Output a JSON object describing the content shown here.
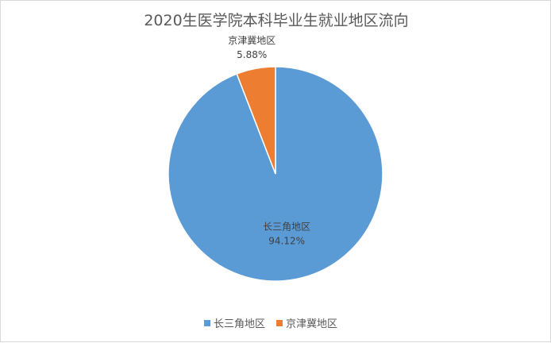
{
  "chart_data": {
    "type": "pie",
    "title": "2020生医学院本科毕业生就业地区流向",
    "slices": [
      {
        "label": "长三角地区",
        "value": 94.12,
        "value_label": "94.12%",
        "color": "#5b9bd5"
      },
      {
        "label": "京津冀地区",
        "value": 5.88,
        "value_label": "5.88%",
        "color": "#ed7d31"
      }
    ],
    "legend_position": "bottom"
  }
}
